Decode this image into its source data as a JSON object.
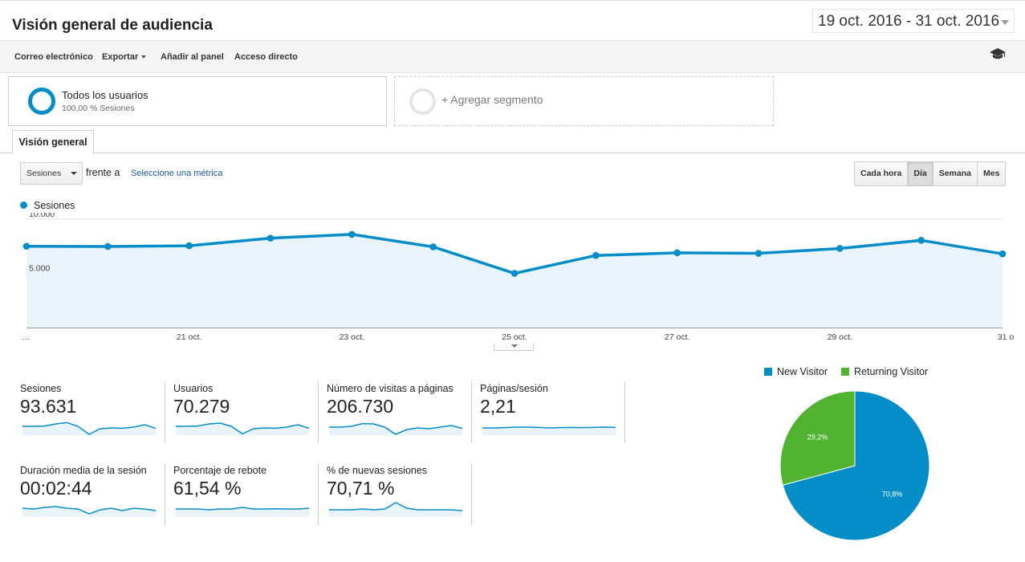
{
  "header": {
    "title": "Visión general de audiencia",
    "date_range": "19 oct. 2016 - 31 oct. 2016"
  },
  "toolbar": {
    "email": "Correo electrónico",
    "export": "Exportar",
    "add_to_panel": "Añadir al panel",
    "shortcut": "Acceso directo",
    "icon": "graduation-cap-icon"
  },
  "segments": {
    "active": {
      "title": "Todos los usuarios",
      "subtitle": "100,00 % Sesiones"
    },
    "add_label": "+ Agregar segmento"
  },
  "tabs": [
    "Visión general"
  ],
  "controls": {
    "metric": "Sesiones",
    "versus": "frente a",
    "select_metric": "Seleccione una métrica",
    "granularity": [
      "Cada hora",
      "Día",
      "Semana",
      "Mes"
    ],
    "granularity_active": "Día"
  },
  "legend": {
    "series": "Sesiones"
  },
  "colors": {
    "accent": "#058dc7",
    "area": "#e9f3fa",
    "returning": "#50b432",
    "link": "#1a5a9c"
  },
  "chart_data": [
    {
      "type": "area",
      "x": [
        "19 oct.",
        "20 oct.",
        "21 oct.",
        "22 oct.",
        "23 oct.",
        "24 oct.",
        "25 oct.",
        "26 oct.",
        "27 oct.",
        "28 oct.",
        "29 oct.",
        "30 oct.",
        "31 oct."
      ],
      "x_tick_labels": [
        "…",
        "21 oct.",
        "23 oct.",
        "25 oct.",
        "27 oct.",
        "29 oct.",
        "31 o"
      ],
      "series": [
        {
          "name": "Sesiones",
          "values": [
            7500,
            7480,
            7550,
            8250,
            8600,
            7450,
            5000,
            6650,
            6900,
            6850,
            7300,
            8050,
            6800
          ]
        }
      ],
      "y_ticks": [
        "10.000",
        "5.000"
      ],
      "ylim": [
        0,
        10000
      ],
      "grid": true
    },
    {
      "type": "pie",
      "categories": [
        "New Visitor",
        "Returning Visitor"
      ],
      "values": [
        70.8,
        29.2
      ],
      "labels": [
        "70,8%",
        "29,2%"
      ],
      "legend": "top"
    }
  ],
  "scorecards": [
    {
      "label": "Sesiones",
      "value": "93.631",
      "spark": [
        0.55,
        0.55,
        0.57,
        0.7,
        0.78,
        0.55,
        0.05,
        0.4,
        0.45,
        0.43,
        0.5,
        0.65,
        0.42
      ]
    },
    {
      "label": "Usuarios",
      "value": "70.279",
      "spark": [
        0.55,
        0.55,
        0.57,
        0.7,
        0.75,
        0.55,
        0.08,
        0.4,
        0.45,
        0.43,
        0.5,
        0.65,
        0.42
      ]
    },
    {
      "label": "Número de visitas a páginas",
      "value": "206.730",
      "spark": [
        0.5,
        0.5,
        0.55,
        0.72,
        0.7,
        0.5,
        0.05,
        0.35,
        0.45,
        0.4,
        0.5,
        0.6,
        0.42
      ]
    },
    {
      "label": "Páginas/sesión",
      "value": "2,21",
      "spark": [
        0.45,
        0.45,
        0.47,
        0.5,
        0.5,
        0.48,
        0.45,
        0.47,
        0.48,
        0.47,
        0.48,
        0.5,
        0.48
      ]
    },
    {
      "label": "Duración media de la sesión",
      "value": "00:02:44",
      "spark": [
        0.55,
        0.5,
        0.6,
        0.65,
        0.55,
        0.5,
        0.2,
        0.45,
        0.55,
        0.4,
        0.55,
        0.5,
        0.4
      ]
    },
    {
      "label": "Porcentaje de rebote",
      "value": "61,54 %",
      "spark": [
        0.5,
        0.5,
        0.5,
        0.45,
        0.5,
        0.5,
        0.6,
        0.5,
        0.5,
        0.52,
        0.5,
        0.5,
        0.55
      ]
    },
    {
      "label": "% de nuevas sesiones",
      "value": "70,71 %",
      "spark": [
        0.45,
        0.45,
        0.45,
        0.5,
        0.45,
        0.5,
        0.9,
        0.55,
        0.45,
        0.45,
        0.45,
        0.45,
        0.4
      ]
    }
  ]
}
